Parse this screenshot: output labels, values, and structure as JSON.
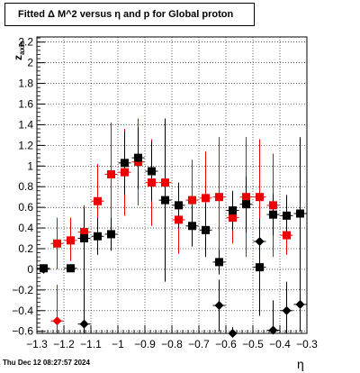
{
  "title": "Fitted Δ M^2 versus η and p for Global proton",
  "footer": "Thu Dec 12 08:27:57 2024",
  "chart_data": {
    "type": "scatter",
    "title": "Fitted Δ M^2 versus η and p for Global proton",
    "xlabel": "η",
    "ylabel": "z_{axis}",
    "xlim": [
      -1.3,
      -0.3
    ],
    "ylim": [
      -0.62,
      2.25
    ],
    "grid": true,
    "x_ticks": [
      "−1.3",
      "−1.2",
      "−1.1",
      "−1",
      "−0.9",
      "−0.8",
      "−0.7",
      "−0.6",
      "−0.5",
      "−0.4",
      "−0.3"
    ],
    "x_tick_values": [
      -1.3,
      -1.2,
      -1.1,
      -1.0,
      -0.9,
      -0.8,
      -0.7,
      -0.6,
      -0.5,
      -0.4,
      -0.3
    ],
    "y_ticks": [
      "−0.6",
      "−0.4",
      "−0.2",
      "0",
      "0.2",
      "0.4",
      "0.6",
      "0.8",
      "1",
      "1.2",
      "1.4",
      "1.6",
      "1.8",
      "2",
      "2.2"
    ],
    "y_tick_values": [
      -0.6,
      -0.4,
      -0.2,
      0,
      0.2,
      0.4,
      0.6,
      0.8,
      1.0,
      1.2,
      1.4,
      1.6,
      1.8,
      2.0,
      2.2
    ],
    "series": [
      {
        "color": "#ee0000",
        "marker": "square",
        "points": [
          {
            "x": -1.225,
            "y": 0.25,
            "lo": 0.0,
            "hi": 0.5
          },
          {
            "x": -1.175,
            "y": 0.28,
            "lo": 0.08,
            "hi": 0.5
          },
          {
            "x": -1.125,
            "y": 0.36,
            "lo": 0.08,
            "hi": 0.62
          },
          {
            "x": -1.075,
            "y": 0.66,
            "lo": 0.3,
            "hi": 1.02
          },
          {
            "x": -1.025,
            "y": 0.92,
            "lo": 0.4,
            "hi": 1.42
          },
          {
            "x": -0.975,
            "y": 0.94,
            "lo": 0.52,
            "hi": 1.36
          },
          {
            "x": -0.925,
            "y": 1.04,
            "lo": 0.62,
            "hi": 1.46
          },
          {
            "x": -0.875,
            "y": 0.84,
            "lo": 0.42,
            "hi": 1.26
          },
          {
            "x": -0.825,
            "y": 0.84,
            "lo": 0.34,
            "hi": 1.34
          },
          {
            "x": -0.775,
            "y": 0.48,
            "lo": 0.15,
            "hi": 0.82
          },
          {
            "x": -0.725,
            "y": 0.67,
            "lo": 0.28,
            "hi": 1.06
          },
          {
            "x": -0.675,
            "y": 0.69,
            "lo": 0.24,
            "hi": 1.14
          },
          {
            "x": -0.625,
            "y": 0.7,
            "lo": 0.12,
            "hi": 1.28
          },
          {
            "x": -0.575,
            "y": 0.5,
            "lo": 0.25,
            "hi": 0.75
          },
          {
            "x": -0.525,
            "y": 0.7,
            "lo": 0.12,
            "hi": 1.28
          },
          {
            "x": -0.475,
            "y": 0.7,
            "lo": 0.14,
            "hi": 1.26
          },
          {
            "x": -0.425,
            "y": 0.62,
            "lo": 0.12,
            "hi": 1.12
          },
          {
            "x": -0.375,
            "y": 0.33,
            "lo": 0.14,
            "hi": 0.52
          }
        ]
      },
      {
        "color": "#000000",
        "marker": "square",
        "points": [
          {
            "x": -1.275,
            "y": 0.01,
            "lo": -0.02,
            "hi": 0.04
          },
          {
            "x": -1.175,
            "y": 0.01,
            "lo": 0.0,
            "hi": 0.02
          },
          {
            "x": -1.125,
            "y": 0.3,
            "lo": 0.0,
            "hi": 0.6
          },
          {
            "x": -1.075,
            "y": 0.32,
            "lo": 0.14,
            "hi": 0.5
          },
          {
            "x": -1.025,
            "y": 0.34,
            "lo": 0.18,
            "hi": 0.5
          },
          {
            "x": -0.975,
            "y": 1.03,
            "lo": 0.72,
            "hi": 1.34
          },
          {
            "x": -0.925,
            "y": 1.08,
            "lo": 0.78,
            "hi": 1.38
          },
          {
            "x": -0.875,
            "y": 0.95,
            "lo": 0.66,
            "hi": 1.24
          },
          {
            "x": -0.825,
            "y": 0.67,
            "lo": -0.12,
            "hi": 1.46
          },
          {
            "x": -0.775,
            "y": 0.62,
            "lo": 0.4,
            "hi": 0.84
          },
          {
            "x": -0.725,
            "y": 0.42,
            "lo": 0.22,
            "hi": 0.62
          },
          {
            "x": -0.675,
            "y": 0.38,
            "lo": 0.12,
            "hi": 0.64
          },
          {
            "x": -0.625,
            "y": 0.07,
            "lo": -0.05,
            "hi": 0.19
          },
          {
            "x": -0.575,
            "y": 0.57,
            "lo": 0.38,
            "hi": 0.76
          },
          {
            "x": -0.525,
            "y": 0.63,
            "lo": 0.36,
            "hi": 0.9
          },
          {
            "x": -0.475,
            "y": 0.02,
            "lo": -0.45,
            "hi": 0.49
          },
          {
            "x": -0.425,
            "y": 0.53,
            "lo": 0.33,
            "hi": 0.73
          },
          {
            "x": -0.375,
            "y": 0.52,
            "lo": 0.32,
            "hi": 0.72
          },
          {
            "x": -0.325,
            "y": 0.54,
            "lo": -0.2,
            "hi": 1.28
          }
        ]
      },
      {
        "color": "#ee0000",
        "marker": "diamond",
        "points": [
          {
            "x": -1.225,
            "y": -0.5,
            "lo": -0.68,
            "hi": -0.15
          }
        ]
      },
      {
        "color": "#000000",
        "marker": "diamond",
        "points": [
          {
            "x": -1.275,
            "y": 0.0,
            "lo": -0.02,
            "hi": 0.02
          },
          {
            "x": -1.125,
            "y": -0.53,
            "lo": -0.68,
            "hi": 0.08
          },
          {
            "x": -0.625,
            "y": -0.35,
            "lo": -0.6,
            "hi": -0.1
          },
          {
            "x": -0.575,
            "y": -0.62,
            "lo": -0.68,
            "hi": -0.56
          },
          {
            "x": -0.475,
            "y": 0.27,
            "lo": 0.05,
            "hi": 0.49
          },
          {
            "x": -0.425,
            "y": -0.59,
            "lo": -0.68,
            "hi": -0.3
          },
          {
            "x": -0.375,
            "y": -0.4,
            "lo": -0.68,
            "hi": -0.12
          },
          {
            "x": -0.325,
            "y": -0.34,
            "lo": -0.6,
            "hi": -0.08
          }
        ]
      }
    ]
  }
}
